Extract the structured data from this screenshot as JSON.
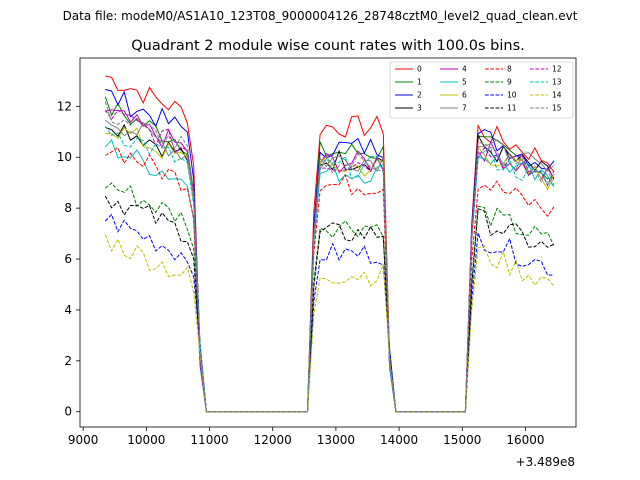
{
  "figure": {
    "suptitle": "Data file: modeM0/AS1A10_123T08_9000004126_28748cztM0_level2_quad_clean.evt"
  },
  "chart_data": {
    "type": "line",
    "title": "Quadrant 2 module wise count rates with 100.0s bins.",
    "xlabel": "",
    "ylabel": "",
    "x_offset_label": "+3.489e8",
    "xlim": [
      8950,
      16800
    ],
    "ylim": [
      -0.6,
      13.9
    ],
    "xticks": [
      9000,
      10000,
      11000,
      12000,
      13000,
      14000,
      15000,
      16000
    ],
    "xtick_labels": [
      "9000",
      "10000",
      "11000",
      "12000",
      "13000",
      "14000",
      "15000",
      "16000"
    ],
    "yticks": [
      0,
      2,
      4,
      6,
      8,
      10,
      12
    ],
    "ytick_labels": [
      "0",
      "2",
      "4",
      "6",
      "8",
      "10",
      "12"
    ],
    "grid": false,
    "legend": {
      "placement": "top-right",
      "columns": 4
    },
    "segments": [
      {
        "start": 9350,
        "end": 10750,
        "step": 100
      },
      {
        "start": 12650,
        "end": 13750,
        "step": 100
      },
      {
        "start": 15150,
        "end": 16450,
        "step": 100
      }
    ],
    "zeros": [
      {
        "start": 10950,
        "end": 12550
      },
      {
        "start": 13950,
        "end": 15050
      }
    ],
    "series": [
      {
        "name": "0",
        "color": "#ff0000",
        "dash": "solid",
        "levels": [
          12.4,
          11.2,
          10.5
        ]
      },
      {
        "name": "1",
        "color": "#008000",
        "dash": "solid",
        "levels": [
          11.2,
          10.2,
          10.0
        ]
      },
      {
        "name": "2",
        "color": "#0000ff",
        "dash": "solid",
        "levels": [
          11.7,
          10.4,
          10.3
        ]
      },
      {
        "name": "3",
        "color": "#000000",
        "dash": "solid",
        "levels": [
          10.7,
          9.9,
          9.9
        ]
      },
      {
        "name": "4",
        "color": "#bf00bf",
        "dash": "solid",
        "levels": [
          11.0,
          9.8,
          9.8
        ]
      },
      {
        "name": "5",
        "color": "#00bfbf",
        "dash": "solid",
        "levels": [
          9.7,
          9.4,
          9.6
        ]
      },
      {
        "name": "6",
        "color": "#bfbf00",
        "dash": "solid",
        "levels": [
          10.5,
          9.6,
          9.7
        ]
      },
      {
        "name": "7",
        "color": "#808080",
        "dash": "solid",
        "levels": [
          10.8,
          9.9,
          10.0
        ]
      },
      {
        "name": "8",
        "color": "#ff0000",
        "dash": "dashed",
        "levels": [
          9.7,
          8.9,
          8.5
        ]
      },
      {
        "name": "9",
        "color": "#008000",
        "dash": "dashed",
        "levels": [
          8.2,
          7.3,
          7.3
        ]
      },
      {
        "name": "10",
        "color": "#0000ff",
        "dash": "dashed",
        "levels": [
          6.8,
          6.2,
          6.3
        ]
      },
      {
        "name": "11",
        "color": "#000000",
        "dash": "dashed",
        "levels": [
          7.7,
          7.0,
          7.0
        ]
      },
      {
        "name": "12",
        "color": "#bf00bf",
        "dash": "dashed",
        "levels": [
          11.0,
          9.8,
          9.8
        ]
      },
      {
        "name": "13",
        "color": "#00bfbf",
        "dash": "dashed",
        "levels": [
          10.4,
          9.6,
          9.6
        ]
      },
      {
        "name": "14",
        "color": "#bfbf00",
        "dash": "dashed",
        "levels": [
          6.0,
          5.4,
          5.7
        ]
      },
      {
        "name": "15",
        "color": "#808080",
        "dash": "dashed",
        "levels": [
          11.0,
          9.8,
          9.8
        ]
      }
    ]
  }
}
